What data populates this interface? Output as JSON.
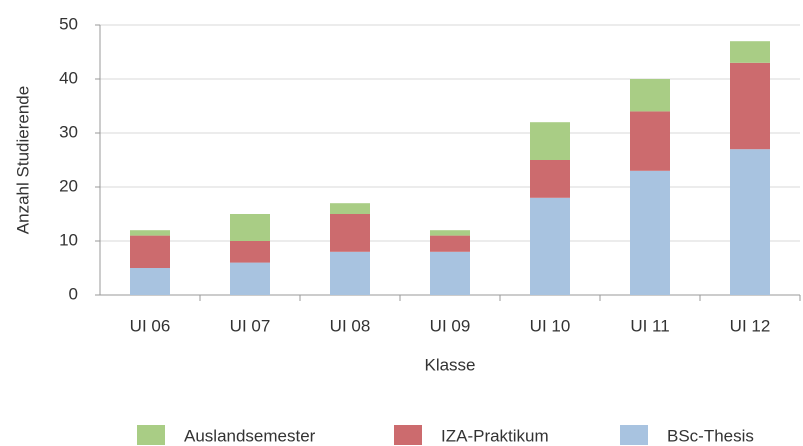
{
  "chart_data": {
    "type": "stacked_bar",
    "x_label": "Klasse",
    "y_label": "Anzahl Studierende",
    "categories": [
      "UI 06",
      "UI 07",
      "UI 08",
      "UI 09",
      "UI 10",
      "UI 11",
      "UI 12"
    ],
    "series": [
      {
        "name": "Auslandsemester",
        "color": "#a9cd85",
        "values": [
          1,
          5,
          2,
          1,
          7,
          6,
          4
        ]
      },
      {
        "name": "IZA-Praktikum",
        "color": "#cc6b6e",
        "values": [
          6,
          4,
          7,
          3,
          7,
          11,
          16
        ]
      },
      {
        "name": "BSc-Thesis",
        "color": "#a8c3e0",
        "values": [
          5,
          6,
          8,
          8,
          18,
          23,
          27
        ]
      }
    ],
    "ylim": [
      0,
      50
    ],
    "yticks": [
      0,
      10,
      20,
      30,
      40,
      50
    ],
    "grid": true,
    "legend": "bottom"
  }
}
